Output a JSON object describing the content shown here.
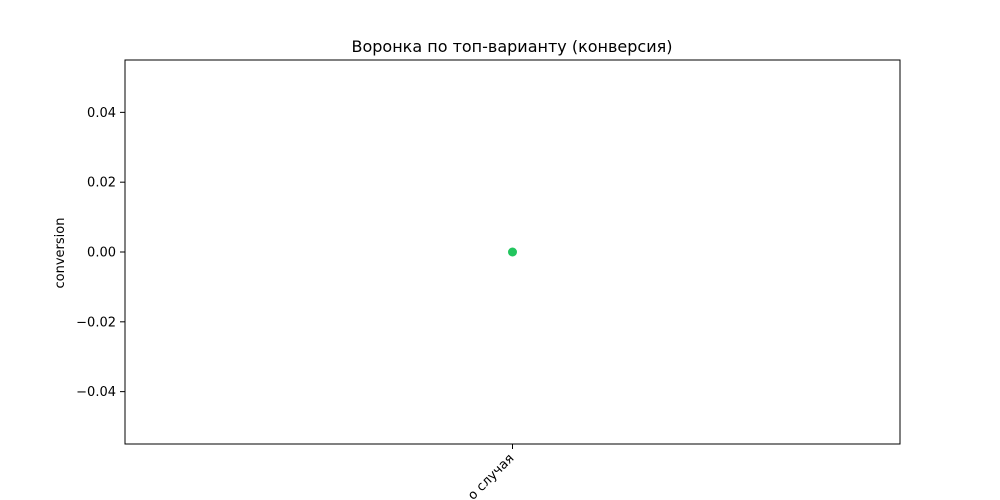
{
  "chart_data": {
    "type": "line",
    "title": "Воронка по топ-варианту (конверсия)",
    "xlabel": "",
    "ylabel": "conversion",
    "categories": [
      "Слово случая"
    ],
    "x_tick_label_visible": "о случая",
    "series": [
      {
        "values": [
          0.0
        ],
        "color": "#22c55e",
        "marker": "circle"
      }
    ],
    "ylim": [
      -0.055,
      0.055
    ],
    "yticks": [
      -0.04,
      -0.02,
      0.0,
      0.02,
      0.04
    ],
    "ytick_labels": [
      "−0.04",
      "−0.02",
      "0.00",
      "0.02",
      "0.04"
    ],
    "grid": false,
    "legend": "none"
  }
}
